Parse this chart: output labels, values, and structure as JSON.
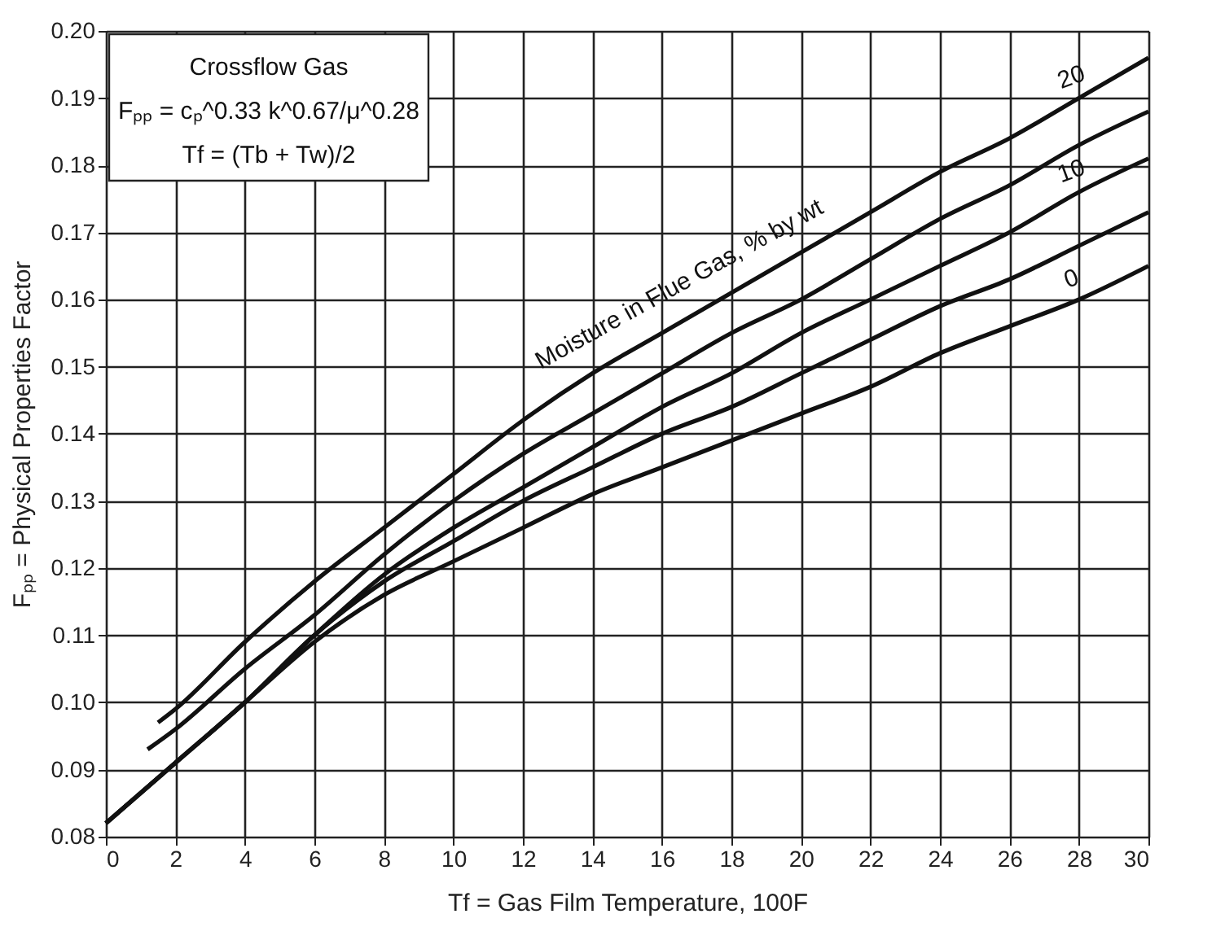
{
  "chart_data": {
    "type": "line",
    "xlabel": "Tf = Gas Film Temperature, 100F",
    "ylabel": "Fₚₚ = Physical Properties Factor",
    "annotations": [
      "Crossflow Gas",
      "Fₚₚ = cₚ^0.33 k^0.67/μ^0.28",
      "Tf = (Tb + Tw)/2",
      "Moisture in Flue Gas, % by wt"
    ],
    "series": [
      {
        "name": "20",
        "color": "#111111",
        "x": [
          1.5,
          2,
          4,
          6,
          8,
          10,
          12,
          14,
          16,
          18,
          20,
          22,
          24,
          26,
          28,
          30
        ],
        "values": [
          0.097,
          0.099,
          0.109,
          0.118,
          0.126,
          0.134,
          0.142,
          0.149,
          0.155,
          0.161,
          0.167,
          0.173,
          0.179,
          0.184,
          0.19,
          0.196
        ]
      },
      {
        "color": "#111111",
        "x": [
          1.2,
          2,
          4,
          6,
          8,
          10,
          12,
          14,
          16,
          18,
          20,
          22,
          24,
          26,
          28,
          30
        ],
        "values": [
          0.093,
          0.096,
          0.105,
          0.113,
          0.122,
          0.13,
          0.137,
          0.143,
          0.149,
          0.155,
          0.16,
          0.166,
          0.172,
          0.177,
          0.183,
          0.188
        ]
      },
      {
        "name": "10",
        "color": "#111111",
        "x": [
          0,
          2,
          4,
          6,
          8,
          10,
          12,
          14,
          16,
          18,
          20,
          22,
          24,
          26,
          28,
          30
        ],
        "values": [
          0.082,
          0.091,
          0.1,
          0.11,
          0.119,
          0.126,
          0.132,
          0.138,
          0.144,
          0.149,
          0.155,
          0.16,
          0.165,
          0.17,
          0.176,
          0.181
        ]
      },
      {
        "color": "#111111",
        "x": [
          0,
          2,
          4,
          6,
          8,
          10,
          12,
          14,
          16,
          18,
          20,
          22,
          24,
          26,
          28,
          30
        ],
        "values": [
          0.082,
          0.091,
          0.1,
          0.11,
          0.118,
          0.124,
          0.13,
          0.135,
          0.14,
          0.144,
          0.149,
          0.154,
          0.159,
          0.163,
          0.168,
          0.173
        ]
      },
      {
        "name": "0",
        "color": "#111111",
        "x": [
          0,
          2,
          4,
          6,
          8,
          10,
          12,
          14,
          16,
          18,
          20,
          22,
          24,
          26,
          28,
          30
        ],
        "values": [
          0.082,
          0.091,
          0.1,
          0.109,
          0.116,
          0.121,
          0.126,
          0.131,
          0.135,
          0.139,
          0.143,
          0.147,
          0.152,
          0.156,
          0.16,
          0.165
        ]
      }
    ],
    "xlim": [
      0,
      30
    ],
    "xticks": [
      0,
      2,
      4,
      6,
      8,
      10,
      12,
      14,
      16,
      18,
      20,
      22,
      24,
      26,
      28,
      30
    ],
    "ylim": [
      0.08,
      0.2
    ],
    "yticks": [
      0.08,
      0.09,
      {
        "value": 0.1,
        "label": "0.10"
      },
      0.11,
      0.12,
      0.13,
      0.14,
      0.15,
      0.16,
      0.17,
      0.18,
      0.19,
      {
        "value": 0.2,
        "label": "0.20"
      }
    ],
    "grid": true,
    "marker": "none",
    "line_style": "solid"
  }
}
